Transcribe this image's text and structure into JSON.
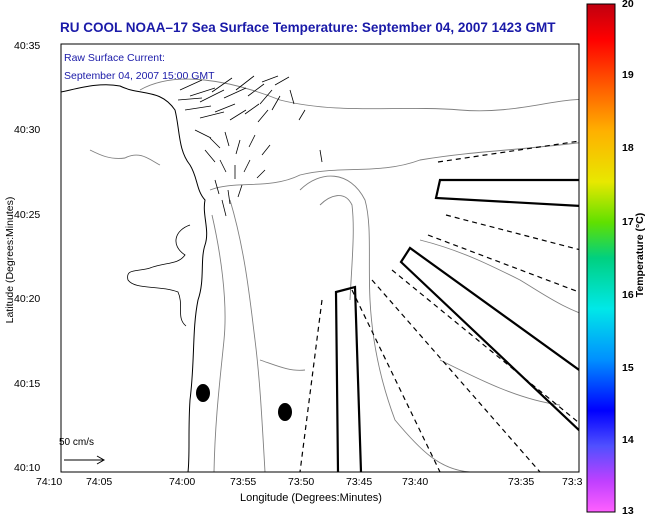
{
  "title": "RU COOL  NOAA–17  Sea Surface Temperature:  September 04, 2007 1423 GMT",
  "annotation": {
    "line1": "Raw Surface Current:",
    "line2": "September 04, 2007 15:00 GMT"
  },
  "axes": {
    "xlabel": "Longitude (Degrees:Minutes)",
    "ylabel": "Latitude (Degrees:Minutes)",
    "xticks": [
      "74:10",
      "74:05",
      "74:00",
      "73:55",
      "73:50",
      "73:45",
      "73:40",
      "73:35",
      "73:3"
    ],
    "yticks": [
      "40:35",
      "40:30",
      "40:25",
      "40:20",
      "40:15",
      "40:10"
    ]
  },
  "colorbar": {
    "label": "Temperature (°C)",
    "ticks": [
      "20",
      "19",
      "18",
      "17",
      "16",
      "15",
      "14",
      "13"
    ],
    "range": [
      13,
      20
    ]
  },
  "scale_label": "50 cm/s",
  "colors": {
    "title": "#1a1aa8",
    "annotation": "#1a1aa8",
    "contours": "#808080"
  }
}
